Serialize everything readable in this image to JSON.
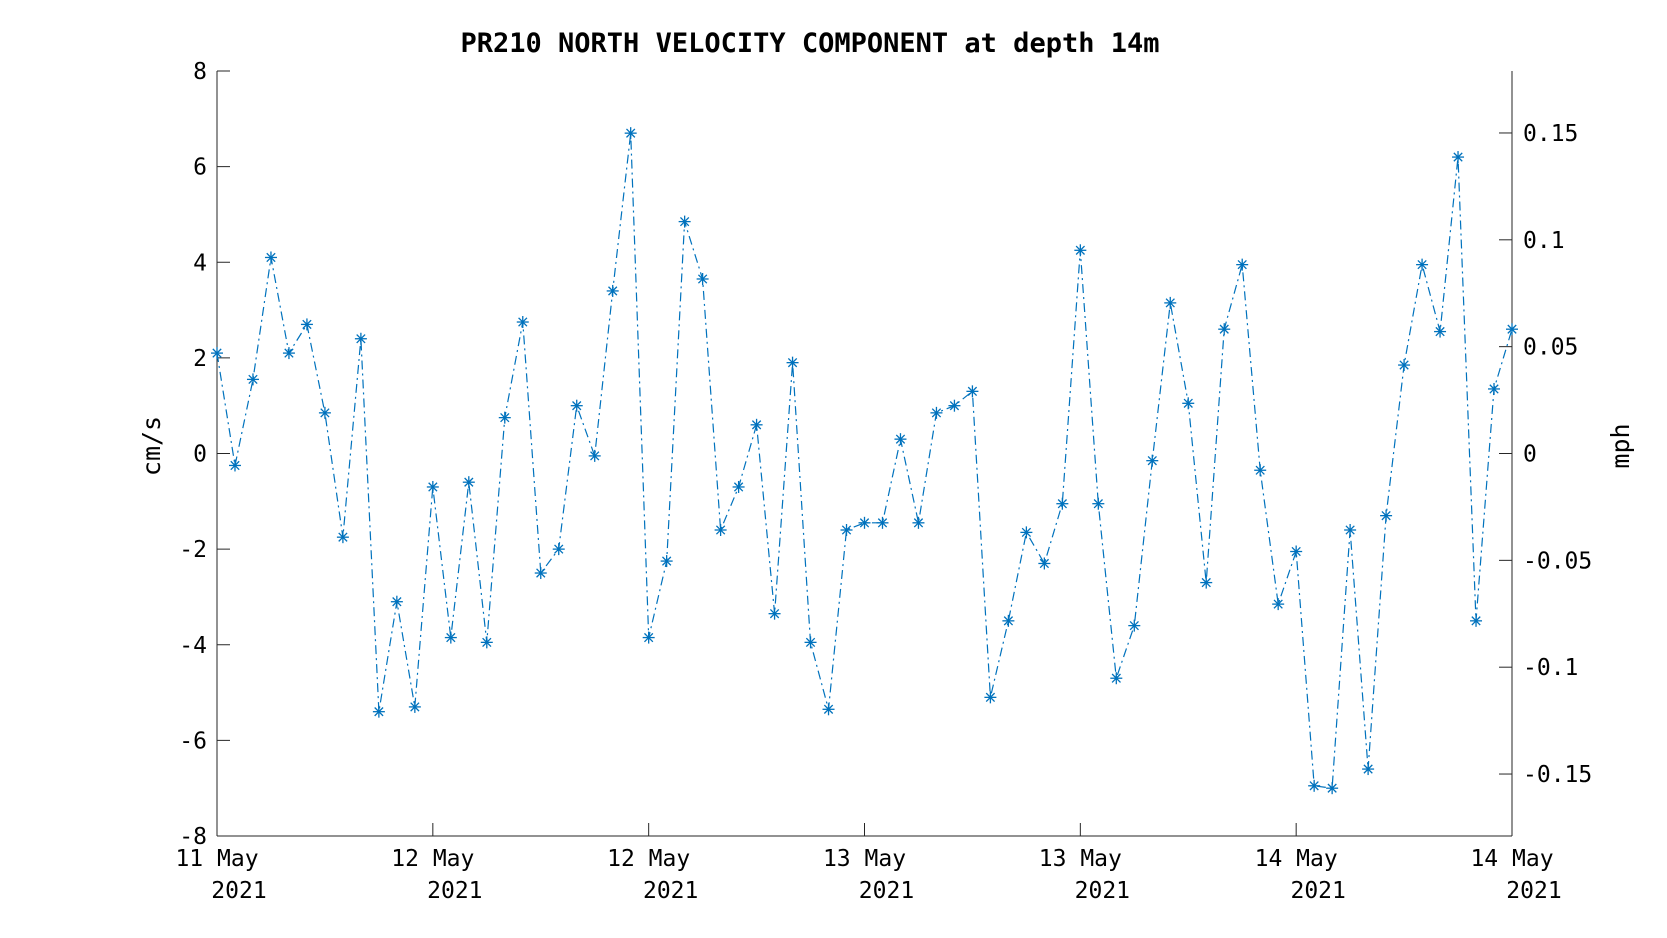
{
  "chart_data": {
    "type": "line",
    "title": "PR210 NORTH VELOCITY COMPONENT at depth 14m",
    "ylabel": "cm/s",
    "y2label": "mph",
    "ylim": [
      -8,
      8
    ],
    "y2lim": [
      -0.179,
      0.179
    ],
    "xlim": [
      0,
      72
    ],
    "yticks": [
      -8,
      -6,
      -4,
      -2,
      0,
      2,
      4,
      6,
      8
    ],
    "y2ticks": [
      -0.15,
      -0.1,
      -0.05,
      0,
      0.05,
      0.1,
      0.15
    ],
    "y2tick_labels": [
      "-0.15",
      "-0.1",
      "-0.05",
      "0",
      "0.05",
      "0.1",
      "0.15"
    ],
    "xtick_hours": [
      0,
      12,
      24,
      36,
      48,
      60,
      72
    ],
    "xtick_labels": [
      [
        "11 May",
        "2021"
      ],
      [
        "12 May",
        "2021"
      ],
      [
        "12 May",
        "2021"
      ],
      [
        "13 May",
        "2021"
      ],
      [
        "13 May",
        "2021"
      ],
      [
        "14 May",
        "2021"
      ],
      [
        "14 May",
        "2021"
      ]
    ],
    "grid": false,
    "line_style": "dash-dot",
    "marker": "asterisk",
    "color": "#0072bd",
    "series": [
      {
        "x": [
          0,
          1,
          2,
          3,
          4,
          5,
          6,
          7,
          8,
          9,
          10,
          11,
          12,
          13,
          14,
          15,
          16,
          17,
          18,
          19,
          20,
          21,
          22,
          23,
          24,
          25,
          26,
          27,
          28,
          29,
          30,
          31,
          32,
          33,
          34,
          35,
          36,
          37,
          38,
          39,
          40,
          41,
          42,
          43,
          44,
          45,
          46,
          47,
          48,
          49,
          50,
          51,
          52,
          53,
          54,
          55,
          56,
          57,
          58,
          59,
          60,
          61,
          62,
          63,
          64,
          65,
          66,
          67,
          68,
          69,
          70,
          71,
          72
        ],
        "y": [
          2.1,
          -0.25,
          1.55,
          4.1,
          2.1,
          2.7,
          0.85,
          -1.75,
          2.4,
          -5.4,
          -3.1,
          -5.3,
          -0.7,
          -3.85,
          -0.6,
          -3.95,
          0.75,
          2.75,
          -2.5,
          -2.0,
          1.0,
          -0.05,
          3.4,
          6.7,
          -3.85,
          -2.25,
          4.85,
          3.65,
          -1.6,
          -0.7,
          0.6,
          -3.35,
          1.9,
          -3.95,
          -5.35,
          -1.6,
          -1.45,
          -1.45,
          0.3,
          -1.45,
          0.85,
          1.0,
          1.3,
          -5.1,
          -3.5,
          -1.65,
          -2.3,
          -1.05,
          4.25,
          -1.05,
          -4.7,
          -3.6,
          -0.15,
          3.15,
          1.05,
          -2.7,
          2.6,
          3.95,
          -0.35,
          -3.15,
          -2.05,
          -6.95,
          -7.0,
          -1.6,
          -6.6,
          -1.3,
          1.85,
          3.95,
          2.55,
          6.2,
          -3.5,
          1.35,
          2.6
        ]
      }
    ]
  }
}
